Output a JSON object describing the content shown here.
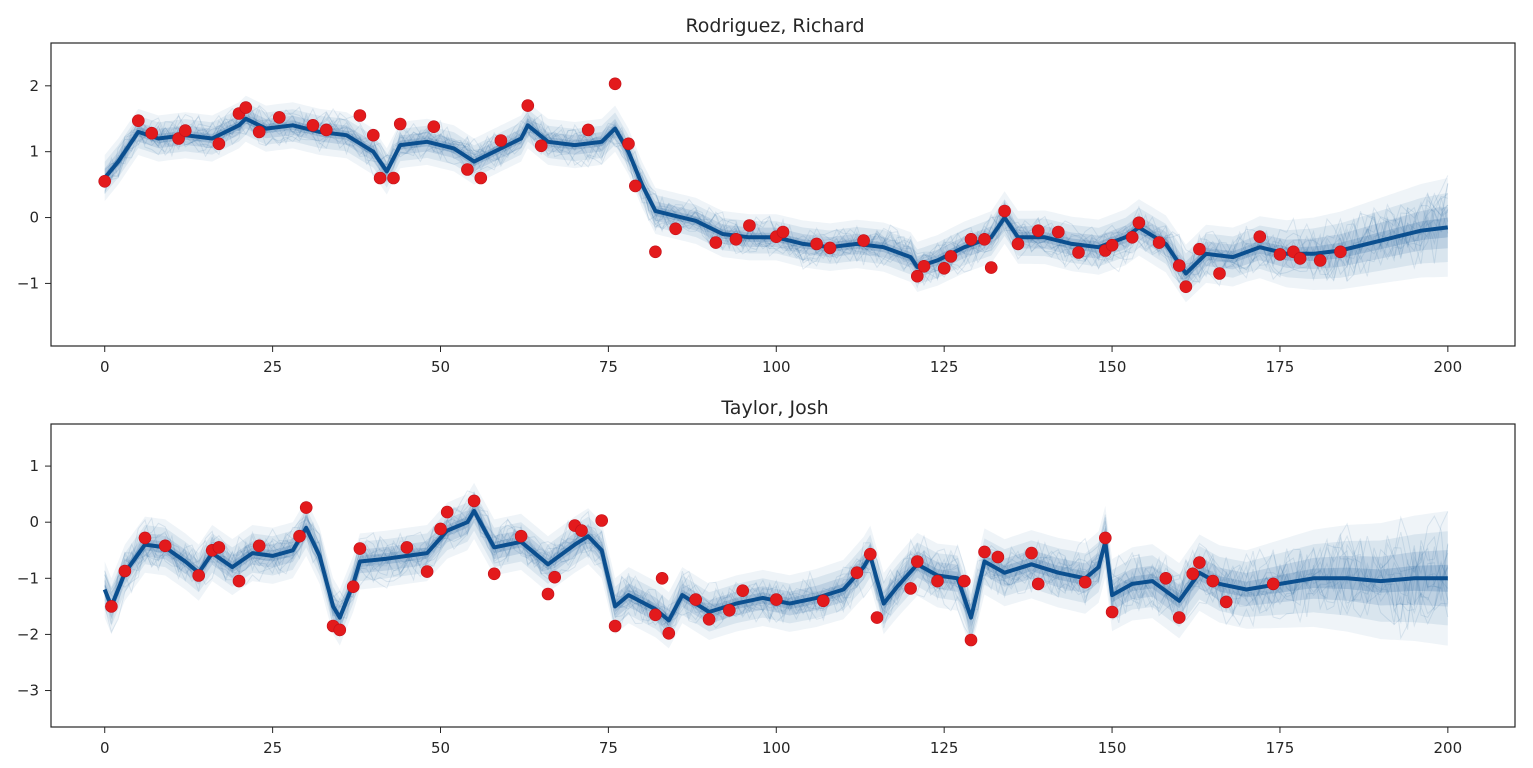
{
  "chart_data": [
    {
      "type": "line",
      "title": "Rodriguez, Richard",
      "xlabel": "",
      "ylabel": "",
      "xlim": [
        -8,
        210
      ],
      "ylim": [
        -1.95,
        2.65
      ],
      "xticks": [
        0,
        25,
        50,
        75,
        100,
        125,
        150,
        175,
        200
      ],
      "yticks": [
        -1,
        0,
        1,
        2
      ],
      "colors": {
        "median": "#0b4f8f",
        "band": "#1f5f9e",
        "observed": "#e31a1c"
      },
      "grid": false,
      "posterior_median": {
        "x": [
          0,
          2,
          5,
          8,
          12,
          16,
          20,
          21,
          24,
          28,
          32,
          36,
          40,
          42,
          44,
          48,
          52,
          55,
          58,
          62,
          63,
          66,
          70,
          74,
          76,
          78,
          80,
          82,
          84,
          88,
          92,
          96,
          100,
          104,
          108,
          112,
          116,
          120,
          121,
          124,
          128,
          132,
          134,
          136,
          140,
          144,
          148,
          152,
          154,
          158,
          161,
          164,
          168,
          172,
          176,
          180,
          184,
          188,
          192,
          196,
          200
        ],
        "y": [
          0.6,
          0.85,
          1.3,
          1.2,
          1.25,
          1.2,
          1.4,
          1.5,
          1.35,
          1.4,
          1.3,
          1.25,
          1.0,
          0.7,
          1.1,
          1.15,
          1.05,
          0.85,
          1.0,
          1.2,
          1.4,
          1.15,
          1.1,
          1.15,
          1.35,
          1.0,
          0.5,
          0.1,
          0.05,
          -0.05,
          -0.25,
          -0.3,
          -0.3,
          -0.4,
          -0.45,
          -0.4,
          -0.45,
          -0.6,
          -0.75,
          -0.65,
          -0.45,
          -0.3,
          0.0,
          -0.3,
          -0.3,
          -0.4,
          -0.45,
          -0.3,
          -0.15,
          -0.4,
          -0.85,
          -0.55,
          -0.6,
          -0.45,
          -0.55,
          -0.55,
          -0.5,
          -0.4,
          -0.3,
          -0.2,
          -0.15
        ]
      },
      "uncertainty_halfwidth": {
        "x": [
          0,
          100,
          170,
          200
        ],
        "y": [
          0.35,
          0.35,
          0.45,
          0.75
        ]
      },
      "observed": {
        "x": [
          0,
          5,
          7,
          11,
          12,
          17,
          20,
          21,
          23,
          26,
          31,
          33,
          38,
          40,
          41,
          43,
          44,
          49,
          54,
          56,
          59,
          63,
          65,
          72,
          76,
          78,
          79,
          82,
          85,
          91,
          94,
          96,
          100,
          101,
          106,
          108,
          113,
          121,
          122,
          125,
          126,
          129,
          131,
          132,
          134,
          136,
          139,
          142,
          145,
          149,
          150,
          153,
          154,
          157,
          160,
          161,
          163,
          166,
          172,
          175,
          177,
          178,
          181,
          184
        ],
        "y": [
          0.55,
          1.47,
          1.28,
          1.2,
          1.32,
          1.12,
          1.58,
          1.67,
          1.3,
          1.52,
          1.4,
          1.33,
          1.55,
          1.25,
          0.6,
          0.6,
          1.42,
          1.38,
          0.73,
          0.6,
          1.17,
          1.7,
          1.09,
          1.33,
          2.03,
          1.12,
          0.48,
          -0.52,
          -0.17,
          -0.38,
          -0.33,
          -0.12,
          -0.29,
          -0.22,
          -0.4,
          -0.46,
          -0.35,
          -0.89,
          -0.74,
          -0.77,
          -0.59,
          -0.33,
          -0.33,
          -0.76,
          0.1,
          -0.4,
          -0.2,
          -0.22,
          -0.53,
          -0.5,
          -0.42,
          -0.3,
          -0.08,
          -0.38,
          -0.73,
          -1.05,
          -0.48,
          -0.85,
          -0.29,
          -0.56,
          -0.52,
          -0.62,
          -0.65,
          -0.52
        ]
      }
    },
    {
      "type": "line",
      "title": "Taylor, Josh",
      "xlabel": "",
      "ylabel": "",
      "xlim": [
        -8,
        210
      ],
      "ylim": [
        -3.65,
        1.75
      ],
      "xticks": [
        0,
        25,
        50,
        75,
        100,
        125,
        150,
        175,
        200
      ],
      "yticks": [
        -3,
        -2,
        -1,
        0,
        1
      ],
      "colors": {
        "median": "#0b4f8f",
        "band": "#1f5f9e",
        "observed": "#e31a1c"
      },
      "grid": false,
      "posterior_median": {
        "x": [
          0,
          1,
          3,
          6,
          9,
          12,
          14,
          16,
          19,
          22,
          25,
          28,
          30,
          32,
          34,
          35,
          37,
          38,
          42,
          45,
          48,
          51,
          54,
          55,
          58,
          62,
          66,
          70,
          72,
          74,
          76,
          78,
          82,
          84,
          86,
          90,
          94,
          98,
          102,
          106,
          110,
          113,
          114,
          116,
          118,
          121,
          124,
          127,
          128,
          129,
          131,
          134,
          138,
          142,
          146,
          148,
          149,
          150,
          153,
          156,
          160,
          163,
          166,
          170,
          175,
          180,
          185,
          190,
          195,
          200
        ],
        "y": [
          -1.2,
          -1.5,
          -0.9,
          -0.4,
          -0.45,
          -0.7,
          -0.9,
          -0.55,
          -0.8,
          -0.55,
          -0.6,
          -0.5,
          -0.1,
          -0.6,
          -1.5,
          -1.7,
          -1.1,
          -0.7,
          -0.65,
          -0.6,
          -0.55,
          -0.15,
          0.0,
          0.2,
          -0.45,
          -0.35,
          -0.75,
          -0.4,
          -0.25,
          -0.5,
          -1.5,
          -1.3,
          -1.55,
          -1.75,
          -1.3,
          -1.6,
          -1.45,
          -1.35,
          -1.45,
          -1.35,
          -1.2,
          -0.8,
          -0.6,
          -1.45,
          -1.15,
          -0.75,
          -0.95,
          -1.0,
          -1.35,
          -1.7,
          -0.7,
          -0.9,
          -0.75,
          -0.9,
          -1.0,
          -0.8,
          -0.35,
          -1.3,
          -1.1,
          -1.05,
          -1.4,
          -0.9,
          -1.1,
          -1.2,
          -1.1,
          -1.0,
          -1.0,
          -1.05,
          -1.0,
          -1.0
        ]
      },
      "uncertainty_halfwidth": {
        "x": [
          0,
          100,
          170,
          200
        ],
        "y": [
          0.5,
          0.5,
          0.7,
          1.2
        ]
      },
      "observed": {
        "x": [
          1,
          3,
          6,
          9,
          14,
          16,
          17,
          20,
          23,
          29,
          30,
          34,
          35,
          37,
          38,
          45,
          48,
          50,
          51,
          55,
          58,
          62,
          66,
          67,
          70,
          71,
          74,
          76,
          82,
          83,
          84,
          88,
          90,
          93,
          95,
          100,
          107,
          112,
          114,
          115,
          120,
          121,
          124,
          128,
          129,
          131,
          133,
          138,
          139,
          146,
          149,
          150,
          158,
          160,
          162,
          163,
          165,
          167,
          174
        ],
        "y": [
          -1.5,
          -0.87,
          -0.28,
          -0.42,
          -0.95,
          -0.5,
          -0.45,
          -1.05,
          -0.42,
          -0.25,
          0.26,
          -1.85,
          -1.92,
          -1.15,
          -0.47,
          -0.45,
          -0.88,
          -0.12,
          0.18,
          0.38,
          -0.92,
          -0.25,
          -1.28,
          -0.98,
          -0.06,
          -0.15,
          0.03,
          -1.85,
          -1.65,
          -1.0,
          -1.98,
          -1.38,
          -1.73,
          -1.57,
          -1.22,
          -1.38,
          -1.4,
          -0.9,
          -0.57,
          -1.7,
          -1.18,
          -0.7,
          -1.05,
          -1.05,
          -2.1,
          -0.53,
          -0.62,
          -0.55,
          -1.1,
          -1.07,
          -0.28,
          -1.6,
          -1.0,
          -1.7,
          -0.92,
          -0.72,
          -1.05,
          -1.42,
          -1.1
        ]
      }
    }
  ]
}
